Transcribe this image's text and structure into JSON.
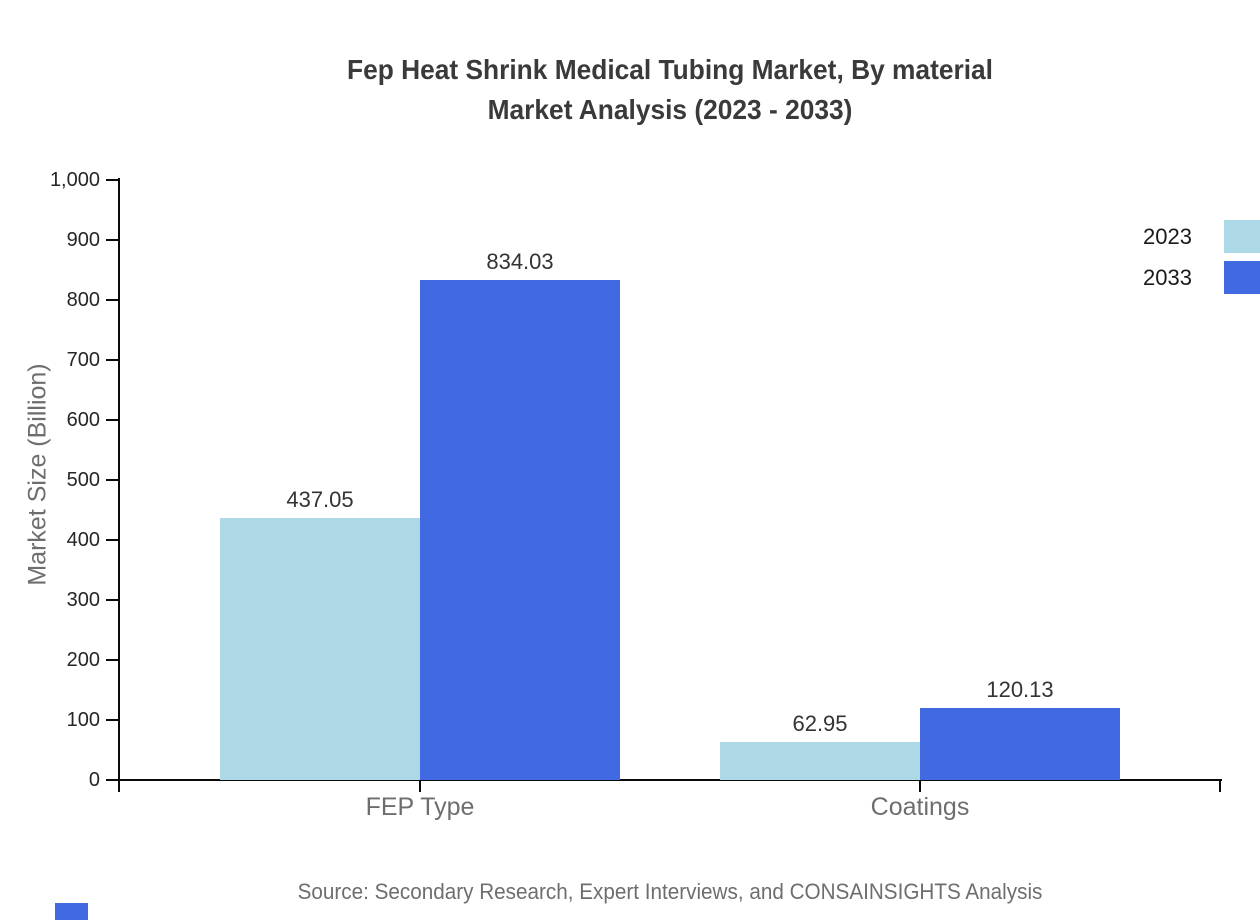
{
  "title": {
    "line1": "Fep Heat Shrink Medical Tubing Market, By material",
    "line2": "Market Analysis (2023 - 2033)"
  },
  "y_axis": {
    "label": "Market Size (Billion)",
    "tick_labels": [
      "0",
      "100",
      "200",
      "300",
      "400",
      "500",
      "600",
      "700",
      "800",
      "900",
      "1,000"
    ],
    "tick_values": [
      0,
      100,
      200,
      300,
      400,
      500,
      600,
      700,
      800,
      900,
      1000
    ]
  },
  "legend": {
    "items": [
      {
        "label": "2023",
        "color": "#ADD8E6"
      },
      {
        "label": "2033",
        "color": "#4169E1"
      }
    ]
  },
  "source": {
    "text": "Source: Secondary Research, Expert Interviews, and CONSAINSIGHTS Analysis"
  },
  "watermark": {
    "color": "#4169E1"
  },
  "chart_data": {
    "type": "bar",
    "title": "Fep Heat Shrink Medical Tubing Market, By material Market Analysis (2023 - 2033)",
    "categories": [
      "FEP Type",
      "Coatings"
    ],
    "series": [
      {
        "name": "2023",
        "color": "#ADD8E6",
        "values": [
          437.05,
          62.95
        ],
        "value_labels": [
          "437.05",
          "62.95"
        ]
      },
      {
        "name": "2033",
        "color": "#4169E1",
        "values": [
          834.03,
          120.13
        ],
        "value_labels": [
          "834.03",
          "120.13"
        ]
      }
    ],
    "xlabel": "",
    "ylabel": "Market Size (Billion)",
    "ylim": [
      0,
      1000
    ],
    "yticks": [
      0,
      100,
      200,
      300,
      400,
      500,
      600,
      700,
      800,
      900,
      1000
    ],
    "grid": false,
    "legend_position": "right"
  }
}
